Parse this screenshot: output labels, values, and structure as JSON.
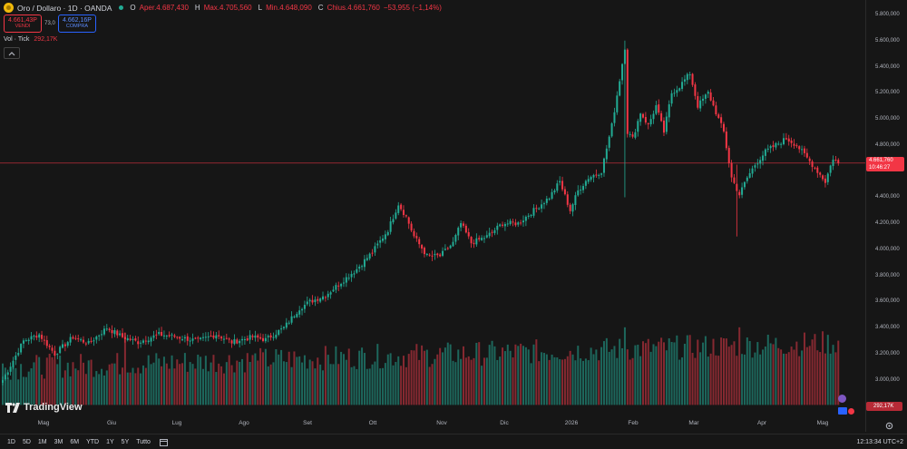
{
  "header": {
    "symbol": "Oro / Dollaro · 1D · OANDA",
    "open_label": "O",
    "open": "Aper.4.687,430",
    "high_label": "H",
    "high": "Max.4.705,560",
    "low_label": "L",
    "low": "Min.4.648,090",
    "close_label": "C",
    "close": "Chius.4.661,760",
    "change": "−53,955 (−1,14%)"
  },
  "trade": {
    "sell_price": "4.661,43P",
    "sell_label": "VENDI",
    "spread": "73,0",
    "buy_price": "4.662,16P",
    "buy_label": "COMPRA"
  },
  "volume_indicator": {
    "label": "Vol · Tick",
    "value": "292,17K"
  },
  "price_axis": {
    "ticks": [
      "5.800,000",
      "5.600,000",
      "5.400,000",
      "5.200,000",
      "5.000,000",
      "4.800,000",
      "4.600,000",
      "4.400,000",
      "4.200,000",
      "4.000,000",
      "3.800,000",
      "3.600,000",
      "3.400,000",
      "3.200,000",
      "3.000,000"
    ],
    "current_price": "4.661,760",
    "countdown": "10:46:27",
    "volume_value": "292,17K"
  },
  "time_axis": {
    "labels": [
      "Mag",
      "Giu",
      "Lug",
      "Ago",
      "Set",
      "Ott",
      "Nov",
      "Dic",
      "2026",
      "Feb",
      "Mar",
      "Apr",
      "Mag"
    ]
  },
  "brand": "TradingView",
  "ranges": [
    "1D",
    "5D",
    "1M",
    "3M",
    "6M",
    "YTD",
    "1Y",
    "5Y",
    "Tutto"
  ],
  "clock": "12:13:34 UTC+2",
  "colors": {
    "up": "#22ab94",
    "down": "#f23645",
    "background": "#161616"
  },
  "icons": {
    "collapse": "chevron-up-icon",
    "calendar": "calendar-icon",
    "settings": "gear-icon",
    "logo": "tradingview-logo"
  },
  "chart_data": {
    "type": "candlestick",
    "ylim": [
      2900,
      5850
    ],
    "current_price": 4661.76,
    "anchors": [
      [
        0,
        3000
      ],
      [
        8,
        3300
      ],
      [
        14,
        3350
      ],
      [
        20,
        3200
      ],
      [
        27,
        3330
      ],
      [
        33,
        3280
      ],
      [
        40,
        3400
      ],
      [
        46,
        3330
      ],
      [
        52,
        3290
      ],
      [
        60,
        3350
      ],
      [
        67,
        3330
      ],
      [
        75,
        3300
      ],
      [
        82,
        3350
      ],
      [
        88,
        3290
      ],
      [
        96,
        3330
      ],
      [
        101,
        3310
      ],
      [
        108,
        3400
      ],
      [
        114,
        3550
      ],
      [
        118,
        3600
      ],
      [
        124,
        3650
      ],
      [
        130,
        3750
      ],
      [
        136,
        3850
      ],
      [
        142,
        3980
      ],
      [
        148,
        4150
      ],
      [
        152,
        4350
      ],
      [
        155,
        4250
      ],
      [
        158,
        4100
      ],
      [
        163,
        3950
      ],
      [
        168,
        3950
      ],
      [
        173,
        4050
      ],
      [
        176,
        4200
      ],
      [
        180,
        4050
      ],
      [
        186,
        4100
      ],
      [
        192,
        4200
      ],
      [
        198,
        4200
      ],
      [
        204,
        4300
      ],
      [
        210,
        4400
      ],
      [
        214,
        4520
      ],
      [
        218,
        4300
      ],
      [
        221,
        4450
      ],
      [
        225,
        4550
      ],
      [
        230,
        4600
      ],
      [
        234,
        4950
      ],
      [
        237,
        5300
      ],
      [
        239,
        5550
      ],
      [
        240,
        4900
      ],
      [
        242,
        4850
      ],
      [
        245,
        5050
      ],
      [
        248,
        4950
      ],
      [
        251,
        5100
      ],
      [
        254,
        4900
      ],
      [
        257,
        5200
      ],
      [
        260,
        5250
      ],
      [
        264,
        5350
      ],
      [
        267,
        5100
      ],
      [
        271,
        5200
      ],
      [
        274,
        5050
      ],
      [
        277,
        4900
      ],
      [
        280,
        4550
      ],
      [
        283,
        4420
      ],
      [
        286,
        4550
      ],
      [
        289,
        4650
      ],
      [
        293,
        4750
      ],
      [
        297,
        4800
      ],
      [
        301,
        4850
      ],
      [
        305,
        4800
      ],
      [
        309,
        4700
      ],
      [
        313,
        4600
      ],
      [
        316,
        4520
      ],
      [
        319,
        4700
      ],
      [
        321,
        4661.76
      ]
    ],
    "spike_candles": [
      [
        239,
        5600,
        4400
      ],
      [
        282,
        4650,
        4100
      ]
    ],
    "volume_peaks": [
      [
        47,
        3550
      ],
      [
        98,
        3300
      ],
      [
        239,
        3600
      ],
      [
        276,
        3500
      ],
      [
        283,
        3600
      ]
    ]
  }
}
